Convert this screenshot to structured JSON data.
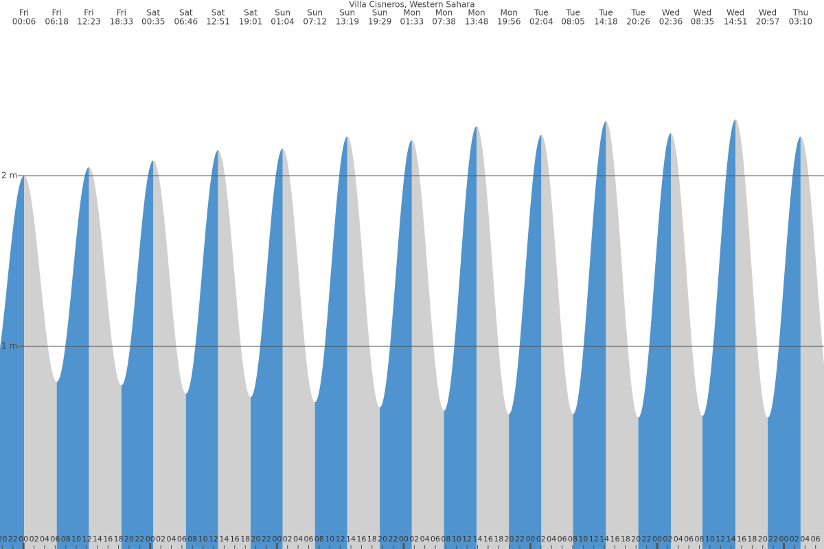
{
  "chart_data": {
    "type": "tide",
    "title": "Villa Cisneros, Western Sahara",
    "days": [
      "Fri",
      "Fri",
      "Fri",
      "Fri",
      "Sat",
      "Sat",
      "Sat",
      "Sat",
      "Sun",
      "Sun",
      "Sun",
      "Sun",
      "Mon",
      "Mon",
      "Mon",
      "Mon",
      "Tue",
      "Tue",
      "Tue",
      "Tue",
      "Wed",
      "Wed",
      "Wed",
      "Wed",
      "Thu"
    ],
    "times": [
      "00:06",
      "06:18",
      "12:23",
      "18:33",
      "00:35",
      "06:46",
      "12:51",
      "19:01",
      "01:04",
      "07:12",
      "13:19",
      "19:29",
      "01:33",
      "07:38",
      "13:48",
      "19:56",
      "02:04",
      "08:05",
      "14:18",
      "20:26",
      "02:36",
      "08:35",
      "14:51",
      "20:57",
      "03:10"
    ],
    "values": [
      2.0,
      0.79,
      2.05,
      0.77,
      2.09,
      0.72,
      2.15,
      0.7,
      2.16,
      0.67,
      2.23,
      0.64,
      2.21,
      0.62,
      2.29,
      0.6,
      2.24,
      0.6,
      2.32,
      0.58,
      2.25,
      0.59,
      2.33,
      0.58,
      2.23
    ],
    "colors": {
      "rising": "#4f94cf",
      "falling": "#d0d0d0"
    },
    "ylim": [
      -0.11,
      2.91
    ],
    "yticks": [
      {
        "value": 1,
        "label": "1 m"
      },
      {
        "value": 2,
        "label": "2 m"
      }
    ],
    "grid": true,
    "xlim": [
      -4.45,
      151.6
    ],
    "xticks": [
      {
        "value": -4,
        "label": "20"
      },
      {
        "value": -2,
        "label": "22"
      },
      {
        "value": 0,
        "label": "00"
      },
      {
        "value": 2,
        "label": "02"
      },
      {
        "value": 4,
        "label": "04"
      },
      {
        "value": 6,
        "label": "06"
      },
      {
        "value": 8,
        "label": "08"
      },
      {
        "value": 10,
        "label": "10"
      },
      {
        "value": 12,
        "label": "12"
      },
      {
        "value": 14,
        "label": "14"
      },
      {
        "value": 16,
        "label": "16"
      },
      {
        "value": 18,
        "label": "18"
      },
      {
        "value": 20,
        "label": "20"
      },
      {
        "value": 22,
        "label": "22"
      },
      {
        "value": 24,
        "label": "00"
      },
      {
        "value": 26,
        "label": "02"
      },
      {
        "value": 28,
        "label": "04"
      },
      {
        "value": 30,
        "label": "06"
      },
      {
        "value": 32,
        "label": "08"
      },
      {
        "value": 34,
        "label": "10"
      },
      {
        "value": 36,
        "label": "12"
      },
      {
        "value": 38,
        "label": "14"
      },
      {
        "value": 40,
        "label": "16"
      },
      {
        "value": 42,
        "label": "18"
      },
      {
        "value": 44,
        "label": "20"
      },
      {
        "value": 46,
        "label": "22"
      },
      {
        "value": 48,
        "label": "00"
      },
      {
        "value": 50,
        "label": "02"
      },
      {
        "value": 52,
        "label": "04"
      },
      {
        "value": 54,
        "label": "06"
      },
      {
        "value": 56,
        "label": "08"
      },
      {
        "value": 58,
        "label": "10"
      },
      {
        "value": 60,
        "label": "12"
      },
      {
        "value": 62,
        "label": "14"
      },
      {
        "value": 64,
        "label": "16"
      },
      {
        "value": 66,
        "label": "18"
      },
      {
        "value": 68,
        "label": "20"
      },
      {
        "value": 70,
        "label": "22"
      },
      {
        "value": 72,
        "label": "00"
      },
      {
        "value": 74,
        "label": "02"
      },
      {
        "value": 76,
        "label": "04"
      },
      {
        "value": 78,
        "label": "06"
      },
      {
        "value": 80,
        "label": "08"
      },
      {
        "value": 82,
        "label": "10"
      },
      {
        "value": 84,
        "label": "12"
      },
      {
        "value": 86,
        "label": "14"
      },
      {
        "value": 88,
        "label": "16"
      },
      {
        "value": 90,
        "label": "18"
      },
      {
        "value": 92,
        "label": "20"
      },
      {
        "value": 94,
        "label": "22"
      },
      {
        "value": 96,
        "label": "00"
      },
      {
        "value": 98,
        "label": "02"
      },
      {
        "value": 100,
        "label": "04"
      },
      {
        "value": 102,
        "label": "06"
      },
      {
        "value": 104,
        "label": "08"
      },
      {
        "value": 106,
        "label": "10"
      },
      {
        "value": 108,
        "label": "12"
      },
      {
        "value": 110,
        "label": "14"
      },
      {
        "value": 112,
        "label": "16"
      },
      {
        "value": 114,
        "label": "18"
      },
      {
        "value": 116,
        "label": "20"
      },
      {
        "value": 118,
        "label": "22"
      },
      {
        "value": 120,
        "label": "00"
      },
      {
        "value": 122,
        "label": "02"
      },
      {
        "value": 124,
        "label": "04"
      },
      {
        "value": 126,
        "label": "06"
      },
      {
        "value": 128,
        "label": "08"
      },
      {
        "value": 130,
        "label": "10"
      },
      {
        "value": 132,
        "label": "12"
      },
      {
        "value": 134,
        "label": "14"
      },
      {
        "value": 136,
        "label": "16"
      },
      {
        "value": 138,
        "label": "18"
      },
      {
        "value": 140,
        "label": "20"
      },
      {
        "value": 142,
        "label": "22"
      },
      {
        "value": 144,
        "label": "00"
      },
      {
        "value": 146,
        "label": "02"
      },
      {
        "value": 148,
        "label": "04"
      },
      {
        "value": 150,
        "label": "06"
      }
    ]
  }
}
